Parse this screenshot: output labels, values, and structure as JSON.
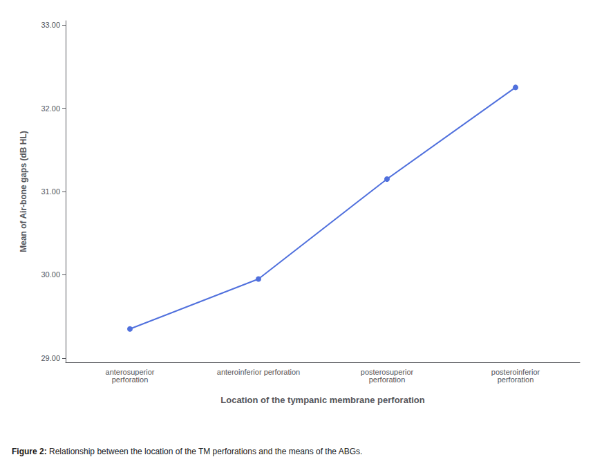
{
  "chart_data": {
    "type": "line",
    "categories": [
      "anterosuperior\nperforation",
      "anteroinferior perforation",
      "posterosuperior\nperforation",
      "posteroinferior\nperforation"
    ],
    "values": [
      29.35,
      29.95,
      31.15,
      32.25
    ],
    "ylim": [
      28.95,
      33.05
    ],
    "yticks": [
      {
        "value": 29,
        "label": "29.00"
      },
      {
        "value": 30,
        "label": "30.00"
      },
      {
        "value": 31,
        "label": "31.00"
      },
      {
        "value": 32,
        "label": "32.00"
      },
      {
        "value": 33,
        "label": "33.00"
      }
    ],
    "ylabel": "Mean of Air-bone gaps (dB HL)",
    "xlabel": "Location of the tympanic membrane perforation",
    "annotations": [
      "Figure 2:",
      "Relationship between the location of the TM perforations and the means of the ABGs."
    ],
    "marker": "circle",
    "grid": false
  }
}
